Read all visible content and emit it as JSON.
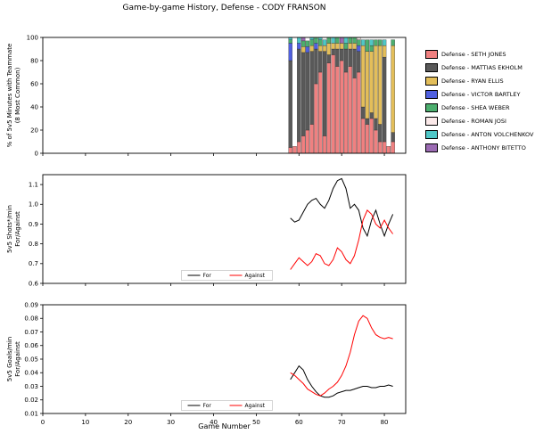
{
  "title": "Game-by-game History, Defense - CODY FRANSON",
  "xlabel": "Game Number",
  "chart_data": [
    {
      "type": "bar",
      "stacked": true,
      "ylabel_lines": [
        "% of 5v5 Minutes with Teammate",
        "(8 Most Common)"
      ],
      "ylim": [
        0,
        100
      ],
      "xlim": [
        0,
        85
      ],
      "yticks": [
        0,
        20,
        40,
        60,
        80,
        100
      ],
      "yticklabels": [
        "0",
        "20",
        "40",
        "60",
        "80",
        "100"
      ],
      "xticks": [
        0,
        10,
        20,
        30,
        40,
        50,
        60,
        70,
        80
      ],
      "xticklabels": [
        "0",
        "10",
        "20",
        "30",
        "40",
        "50",
        "60",
        "70",
        "80"
      ],
      "x": [
        58,
        59,
        60,
        61,
        62,
        63,
        64,
        65,
        66,
        67,
        68,
        69,
        70,
        71,
        72,
        73,
        74,
        75,
        76,
        77,
        78,
        79,
        80,
        81,
        82
      ],
      "series": [
        {
          "name": "Defense - SETH JONES",
          "color": "#F08080",
          "values": [
            5,
            6,
            10,
            15,
            20,
            25,
            60,
            70,
            15,
            78,
            85,
            75,
            80,
            70,
            75,
            65,
            70,
            30,
            25,
            30,
            20,
            10,
            10,
            6,
            10
          ]
        },
        {
          "name": "Defense - MATTIAS EKHOLM",
          "color": "#595959",
          "values": [
            75,
            0,
            80,
            72,
            67,
            63,
            30,
            18,
            73,
            7,
            5,
            15,
            10,
            20,
            15,
            25,
            18,
            10,
            5,
            5,
            10,
            15,
            73,
            0,
            8
          ]
        },
        {
          "name": "Defense - RYAN ELLIS",
          "color": "#E3BE5A",
          "values": [
            0,
            0,
            0,
            5,
            0,
            5,
            0,
            5,
            5,
            10,
            5,
            5,
            5,
            0,
            5,
            5,
            0,
            53,
            58,
            53,
            63,
            68,
            10,
            0,
            75
          ]
        },
        {
          "name": "Defense - VICTOR BARTLEY",
          "color": "#5060E0",
          "values": [
            15,
            0,
            5,
            0,
            5,
            0,
            5,
            0,
            0,
            0,
            0,
            0,
            0,
            0,
            0,
            0,
            5,
            0,
            0,
            0,
            0,
            0,
            0,
            0,
            0
          ]
        },
        {
          "name": "Defense - SHEA WEBER",
          "color": "#4CAE6E",
          "values": [
            3,
            0,
            0,
            5,
            5,
            5,
            5,
            5,
            0,
            5,
            0,
            5,
            0,
            5,
            5,
            5,
            5,
            0,
            10,
            5,
            5,
            5,
            0,
            0,
            5
          ]
        },
        {
          "name": "Defense - ROMAN JOSI",
          "color": "#FBE9E9",
          "values": [
            0,
            0,
            0,
            0,
            0,
            0,
            0,
            0,
            0,
            0,
            0,
            0,
            0,
            0,
            0,
            0,
            2,
            0,
            0,
            0,
            0,
            0,
            0,
            0,
            0
          ]
        },
        {
          "name": "Defense - ANTON VOLCHENKOV",
          "color": "#4FC7C7",
          "values": [
            2,
            0,
            5,
            0,
            0,
            2,
            0,
            2,
            5,
            0,
            5,
            0,
            0,
            5,
            0,
            0,
            0,
            5,
            0,
            5,
            0,
            0,
            5,
            0,
            0
          ]
        },
        {
          "name": "Defense - ANTHONY BITETTO",
          "color": "#9B6BB3",
          "values": [
            0,
            0,
            0,
            3,
            0,
            0,
            0,
            0,
            0,
            0,
            0,
            0,
            5,
            0,
            0,
            0,
            0,
            0,
            0,
            0,
            0,
            0,
            0,
            0,
            0
          ]
        }
      ]
    },
    {
      "type": "line",
      "ylabel_lines": [
        "5v5 Shots*/min",
        "For/Against"
      ],
      "ylim": [
        0.6,
        1.15
      ],
      "xlim": [
        0,
        85
      ],
      "yticks": [
        0.6,
        0.7,
        0.8,
        0.9,
        1.0,
        1.1
      ],
      "yticklabels": [
        "0.6",
        "0.7",
        "0.8",
        "0.9",
        "1.0",
        "1.1"
      ],
      "xticks": [
        0,
        10,
        20,
        30,
        40,
        50,
        60,
        70,
        80
      ],
      "xticklabels": [
        "0",
        "10",
        "20",
        "30",
        "40",
        "50",
        "60",
        "70",
        "80"
      ],
      "x": [
        58,
        59,
        60,
        61,
        62,
        63,
        64,
        65,
        66,
        67,
        68,
        69,
        70,
        71,
        72,
        73,
        74,
        75,
        76,
        77,
        78,
        79,
        80,
        81,
        82
      ],
      "series": [
        {
          "name": "For",
          "color": "#000000",
          "values": [
            0.93,
            0.91,
            0.92,
            0.96,
            1.0,
            1.02,
            1.03,
            1.0,
            0.98,
            1.02,
            1.08,
            1.12,
            1.13,
            1.08,
            0.98,
            1.0,
            0.97,
            0.88,
            0.84,
            0.92,
            0.97,
            0.9,
            0.84,
            0.9,
            0.95
          ]
        },
        {
          "name": "Against",
          "color": "#FF0000",
          "values": [
            0.67,
            0.7,
            0.73,
            0.71,
            0.69,
            0.71,
            0.75,
            0.74,
            0.7,
            0.69,
            0.72,
            0.78,
            0.76,
            0.72,
            0.7,
            0.74,
            0.82,
            0.92,
            0.97,
            0.95,
            0.9,
            0.88,
            0.92,
            0.88,
            0.85
          ]
        }
      ],
      "legend_position": "lower center"
    },
    {
      "type": "line",
      "ylabel_lines": [
        "5v5 Goals/min",
        "For/Against"
      ],
      "ylim": [
        0.01,
        0.09
      ],
      "xlim": [
        0,
        85
      ],
      "yticks": [
        0.01,
        0.02,
        0.03,
        0.04,
        0.05,
        0.06,
        0.07,
        0.08,
        0.09
      ],
      "yticklabels": [
        "0.01",
        "0.02",
        "0.03",
        "0.04",
        "0.05",
        "0.06",
        "0.07",
        "0.08",
        "0.09"
      ],
      "xticks": [
        0,
        10,
        20,
        30,
        40,
        50,
        60,
        70,
        80
      ],
      "xticklabels": [
        "0",
        "10",
        "20",
        "30",
        "40",
        "50",
        "60",
        "70",
        "80"
      ],
      "x": [
        58,
        59,
        60,
        61,
        62,
        63,
        64,
        65,
        66,
        67,
        68,
        69,
        70,
        71,
        72,
        73,
        74,
        75,
        76,
        77,
        78,
        79,
        80,
        81,
        82
      ],
      "series": [
        {
          "name": "For",
          "color": "#000000",
          "values": [
            0.035,
            0.04,
            0.045,
            0.042,
            0.035,
            0.03,
            0.026,
            0.023,
            0.022,
            0.022,
            0.023,
            0.025,
            0.026,
            0.027,
            0.027,
            0.028,
            0.029,
            0.03,
            0.03,
            0.029,
            0.029,
            0.03,
            0.03,
            0.031,
            0.03
          ]
        },
        {
          "name": "Against",
          "color": "#FF0000",
          "values": [
            0.04,
            0.038,
            0.035,
            0.032,
            0.028,
            0.026,
            0.024,
            0.023,
            0.025,
            0.028,
            0.03,
            0.033,
            0.038,
            0.045,
            0.055,
            0.068,
            0.078,
            0.082,
            0.08,
            0.073,
            0.068,
            0.066,
            0.065,
            0.066,
            0.065
          ]
        }
      ],
      "legend_position": "lower center"
    }
  ]
}
